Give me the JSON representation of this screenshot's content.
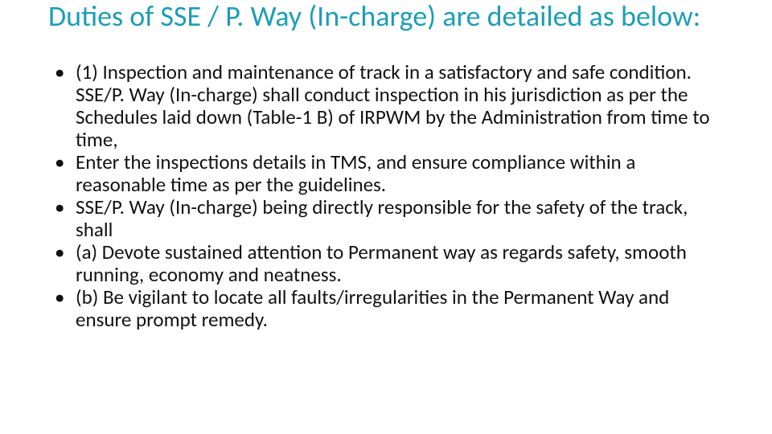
{
  "slide": {
    "title": "Duties of SSE / P. Way (In-charge) are detailed as below:",
    "title_color": "#1e9db6",
    "title_fontsize": 36,
    "body_color": "#111111",
    "body_fontsize": 25,
    "background_color": "#ffffff",
    "bullets": [
      "(1) Inspection and maintenance of track in a satisfactory and safe condition. SSE/P. Way (In-charge) shall conduct inspection in his jurisdiction as per the Schedules laid down (Table-1 B) of IRPWM by the Administration from time to time,",
      "Enter the inspections details in TMS, and ensure compliance within a reasonable time as per the guidelines.",
      "SSE/P. Way (In-charge) being directly responsible for the safety of the track, shall",
      "(a) Devote sustained attention to Permanent way as regards safety, smooth running, economy and neatness.",
      "(b) Be vigilant to locate all faults/irregularities in the Permanent Way and ensure prompt remedy."
    ]
  }
}
